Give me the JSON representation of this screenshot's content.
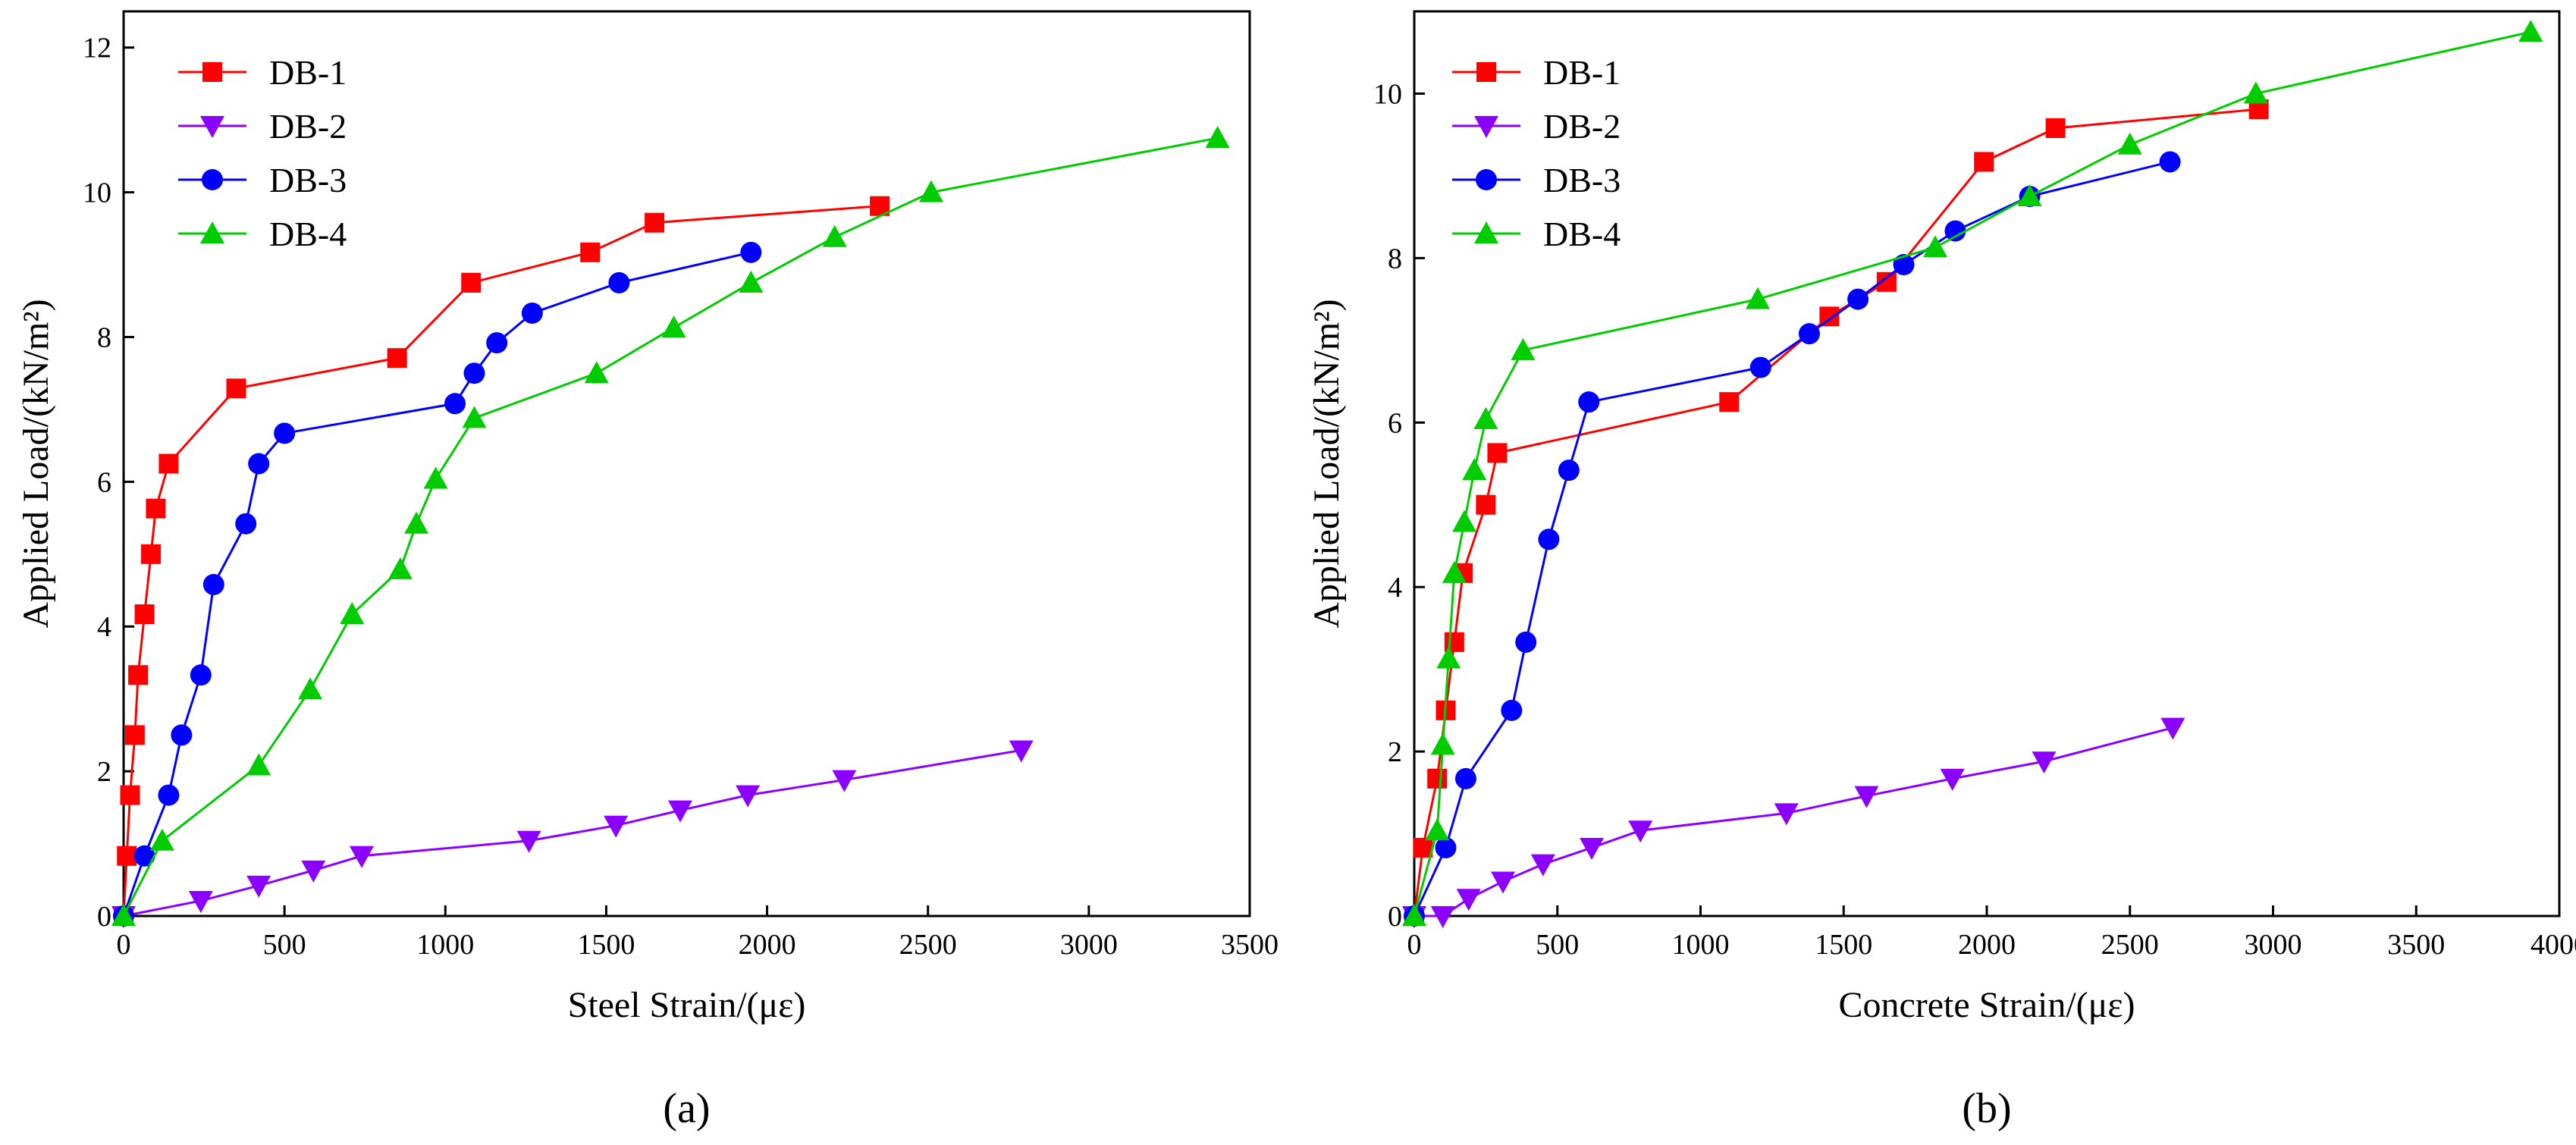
{
  "chart_data": [
    {
      "type": "line",
      "panel_label": "(a)",
      "xlabel": "Steel Strain/(με)",
      "ylabel": "Applied Load/(kN/m²)",
      "xlim": [
        0,
        3500
      ],
      "ylim": [
        0,
        12.5
      ],
      "xticks": [
        "0",
        "500",
        "1000",
        "1500",
        "2000",
        "2500",
        "3000",
        "3500"
      ],
      "yticks": [
        "0",
        "2",
        "4",
        "6",
        "8",
        "10",
        "12"
      ],
      "legend_position": "top-left",
      "grid": false,
      "series": [
        {
          "name": "DB-1",
          "color": "#ff0000",
          "marker": "square",
          "x": [
            0,
            10,
            20,
            35,
            45,
            65,
            85,
            100,
            140,
            350,
            850,
            1080,
            1450,
            1650,
            2350
          ],
          "y": [
            0,
            0.83,
            1.67,
            2.5,
            3.33,
            4.17,
            5.0,
            5.63,
            6.25,
            7.29,
            7.71,
            8.75,
            9.17,
            9.58,
            9.81
          ]
        },
        {
          "name": "DB-2",
          "color": "#8b00ff",
          "marker": "triangle-down",
          "x": [
            0,
            240,
            420,
            590,
            740,
            1260,
            1530,
            1730,
            1940,
            2240,
            2790
          ],
          "y": [
            0,
            0.21,
            0.42,
            0.63,
            0.83,
            1.04,
            1.25,
            1.46,
            1.67,
            1.88,
            2.29
          ]
        },
        {
          "name": "DB-3",
          "color": "#0000ff",
          "marker": "circle",
          "x": [
            0,
            65,
            140,
            180,
            240,
            280,
            380,
            420,
            500,
            1030,
            1090,
            1160,
            1270,
            1540,
            1950
          ],
          "y": [
            0,
            0.83,
            1.67,
            2.5,
            3.33,
            4.58,
            5.42,
            6.25,
            6.67,
            7.08,
            7.5,
            7.92,
            8.33,
            8.75,
            9.17
          ]
        },
        {
          "name": "DB-4",
          "color": "#00cc00",
          "marker": "triangle-up",
          "x": [
            0,
            120,
            420,
            580,
            710,
            860,
            910,
            970,
            1090,
            1470,
            1710,
            1950,
            2210,
            2510,
            3400
          ],
          "y": [
            0,
            1.04,
            2.08,
            3.13,
            4.17,
            4.79,
            5.42,
            6.04,
            6.88,
            7.5,
            8.13,
            8.75,
            9.38,
            10.0,
            10.75
          ]
        }
      ]
    },
    {
      "type": "line",
      "panel_label": "(b)",
      "xlabel": "Concrete Strain/(με)",
      "ylabel": "Applied Load/(kN/m²)",
      "xlim": [
        0,
        4000
      ],
      "ylim": [
        0,
        11
      ],
      "xticks": [
        "0",
        "500",
        "1000",
        "1500",
        "2000",
        "2500",
        "3000",
        "3500",
        "4000"
      ],
      "yticks": [
        "0",
        "2",
        "4",
        "6",
        "8",
        "10"
      ],
      "legend_position": "top-left",
      "grid": false,
      "series": [
        {
          "name": "DB-1",
          "color": "#ff0000",
          "marker": "square",
          "x": [
            0,
            30,
            80,
            110,
            140,
            170,
            250,
            290,
            1100,
            1450,
            1650,
            1990,
            2240,
            2950
          ],
          "y": [
            0,
            0.83,
            1.67,
            2.5,
            3.33,
            4.17,
            5.0,
            5.63,
            6.25,
            7.29,
            7.71,
            9.17,
            9.58,
            9.81
          ]
        },
        {
          "name": "DB-2",
          "color": "#8b00ff",
          "marker": "triangle-down",
          "x": [
            0,
            100,
            190,
            310,
            450,
            620,
            790,
            1300,
            1580,
            1880,
            2200,
            2650
          ],
          "y": [
            0,
            0.0,
            0.21,
            0.42,
            0.63,
            0.83,
            1.04,
            1.25,
            1.46,
            1.67,
            1.88,
            2.29
          ]
        },
        {
          "name": "DB-3",
          "color": "#0000ff",
          "marker": "circle",
          "x": [
            0,
            110,
            180,
            340,
            390,
            470,
            540,
            610,
            1210,
            1380,
            1550,
            1710,
            1890,
            2150,
            2640
          ],
          "y": [
            0,
            0.83,
            1.67,
            2.5,
            3.33,
            4.58,
            5.42,
            6.25,
            6.67,
            7.08,
            7.5,
            7.92,
            8.33,
            8.75,
            9.17
          ]
        },
        {
          "name": "DB-4",
          "color": "#00cc00",
          "marker": "triangle-up",
          "x": [
            0,
            80,
            100,
            120,
            140,
            175,
            210,
            250,
            380,
            1200,
            1820,
            2150,
            2500,
            2940,
            3900
          ],
          "y": [
            0,
            1.04,
            2.08,
            3.13,
            4.17,
            4.79,
            5.42,
            6.04,
            6.88,
            7.5,
            8.13,
            8.75,
            9.38,
            10.0,
            10.75
          ]
        }
      ]
    }
  ]
}
